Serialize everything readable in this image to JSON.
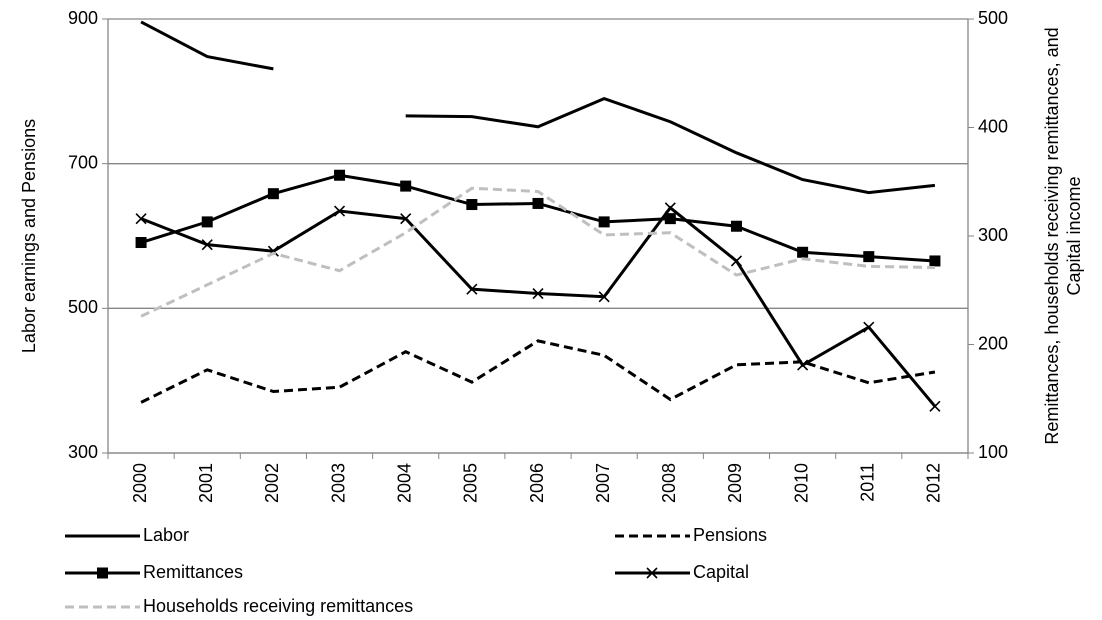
{
  "chart_data": {
    "type": "line",
    "y_label": "Labor earnings and Pensions",
    "y2_label": "Remittances, households receiving remittances, and Capital income",
    "categories": [
      "2000",
      "2001",
      "2002",
      "2003",
      "2004",
      "2005",
      "2006",
      "2007",
      "2008",
      "2009",
      "2010",
      "2011",
      "2012"
    ],
    "ylim": [
      300,
      900
    ],
    "yticks": [
      300,
      500,
      700,
      900
    ],
    "y2lim": [
      100,
      500
    ],
    "y2ticks": [
      100,
      200,
      300,
      400,
      500
    ],
    "grid": true,
    "series": [
      {
        "name": "Labor",
        "color": "#000000",
        "dash": "solid",
        "marker": "none",
        "values": [
          896,
          848,
          831,
          null,
          766,
          765,
          751,
          790,
          758,
          715,
          678,
          660,
          670
        ]
      },
      {
        "name": "Pensions",
        "color": "#000000",
        "dash": "dashed",
        "marker": "none",
        "values": [
          370,
          415,
          385,
          391,
          440,
          398,
          455,
          435,
          374,
          422,
          426,
          397,
          412
        ]
      },
      {
        "name": "Remittances",
        "color": "#000000",
        "dash": "solid",
        "marker": "square",
        "axis": "y2",
        "values": [
          294,
          313,
          339,
          356,
          346,
          329,
          330,
          313,
          316,
          309,
          285,
          281,
          277
        ]
      },
      {
        "name": "Capital",
        "color": "#000000",
        "dash": "solid",
        "marker": "x",
        "axis": "y2",
        "values": [
          316,
          292,
          286,
          323,
          316,
          251,
          247,
          244,
          326,
          277,
          181,
          216,
          143
        ]
      },
      {
        "name": "Households receiving remittances",
        "color": "#bfbfbf",
        "dash": "dashed",
        "marker": "none",
        "axis": "y2",
        "values": [
          226,
          255,
          284,
          268,
          303,
          344,
          341,
          301,
          303,
          264,
          279,
          272,
          271
        ]
      }
    ]
  }
}
